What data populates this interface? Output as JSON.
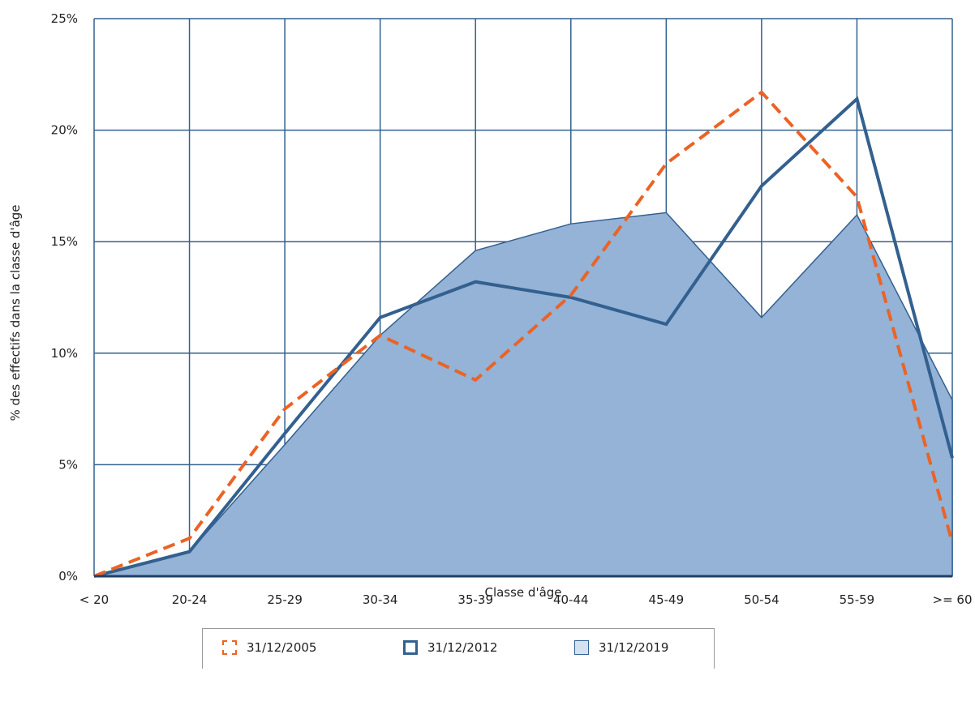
{
  "chart_data": {
    "type": "line",
    "categories": [
      "< 20",
      "20-24",
      "25-29",
      "30-34",
      "35-39",
      "40-44",
      "45-49",
      "50-54",
      "55-59",
      ">= 60"
    ],
    "xlabel": "Classe d'âge",
    "ylabel": "% des effectifs dans la classe d'âge",
    "ylim": [
      0,
      25
    ],
    "yticks": [
      "0%",
      "5%",
      "10%",
      "15%",
      "20%",
      "25%"
    ],
    "grid": true,
    "legend_position": "bottom",
    "series": [
      {
        "name": "31/12/2005",
        "style": "dashed-line",
        "color": "#EB6325",
        "values": [
          0,
          1.7,
          7.5,
          10.8,
          8.8,
          12.6,
          18.5,
          21.7,
          17.0,
          1.5
        ]
      },
      {
        "name": "31/12/2012",
        "style": "solid-line",
        "color": "#33608F",
        "values": [
          0,
          1.1,
          6.4,
          11.6,
          13.2,
          12.5,
          11.3,
          17.5,
          21.4,
          5.3
        ]
      },
      {
        "name": "31/12/2019",
        "style": "area",
        "color": "#94B3D7",
        "values": [
          0,
          1.1,
          5.9,
          10.8,
          14.6,
          15.8,
          16.3,
          11.6,
          16.2,
          7.9
        ]
      }
    ]
  }
}
